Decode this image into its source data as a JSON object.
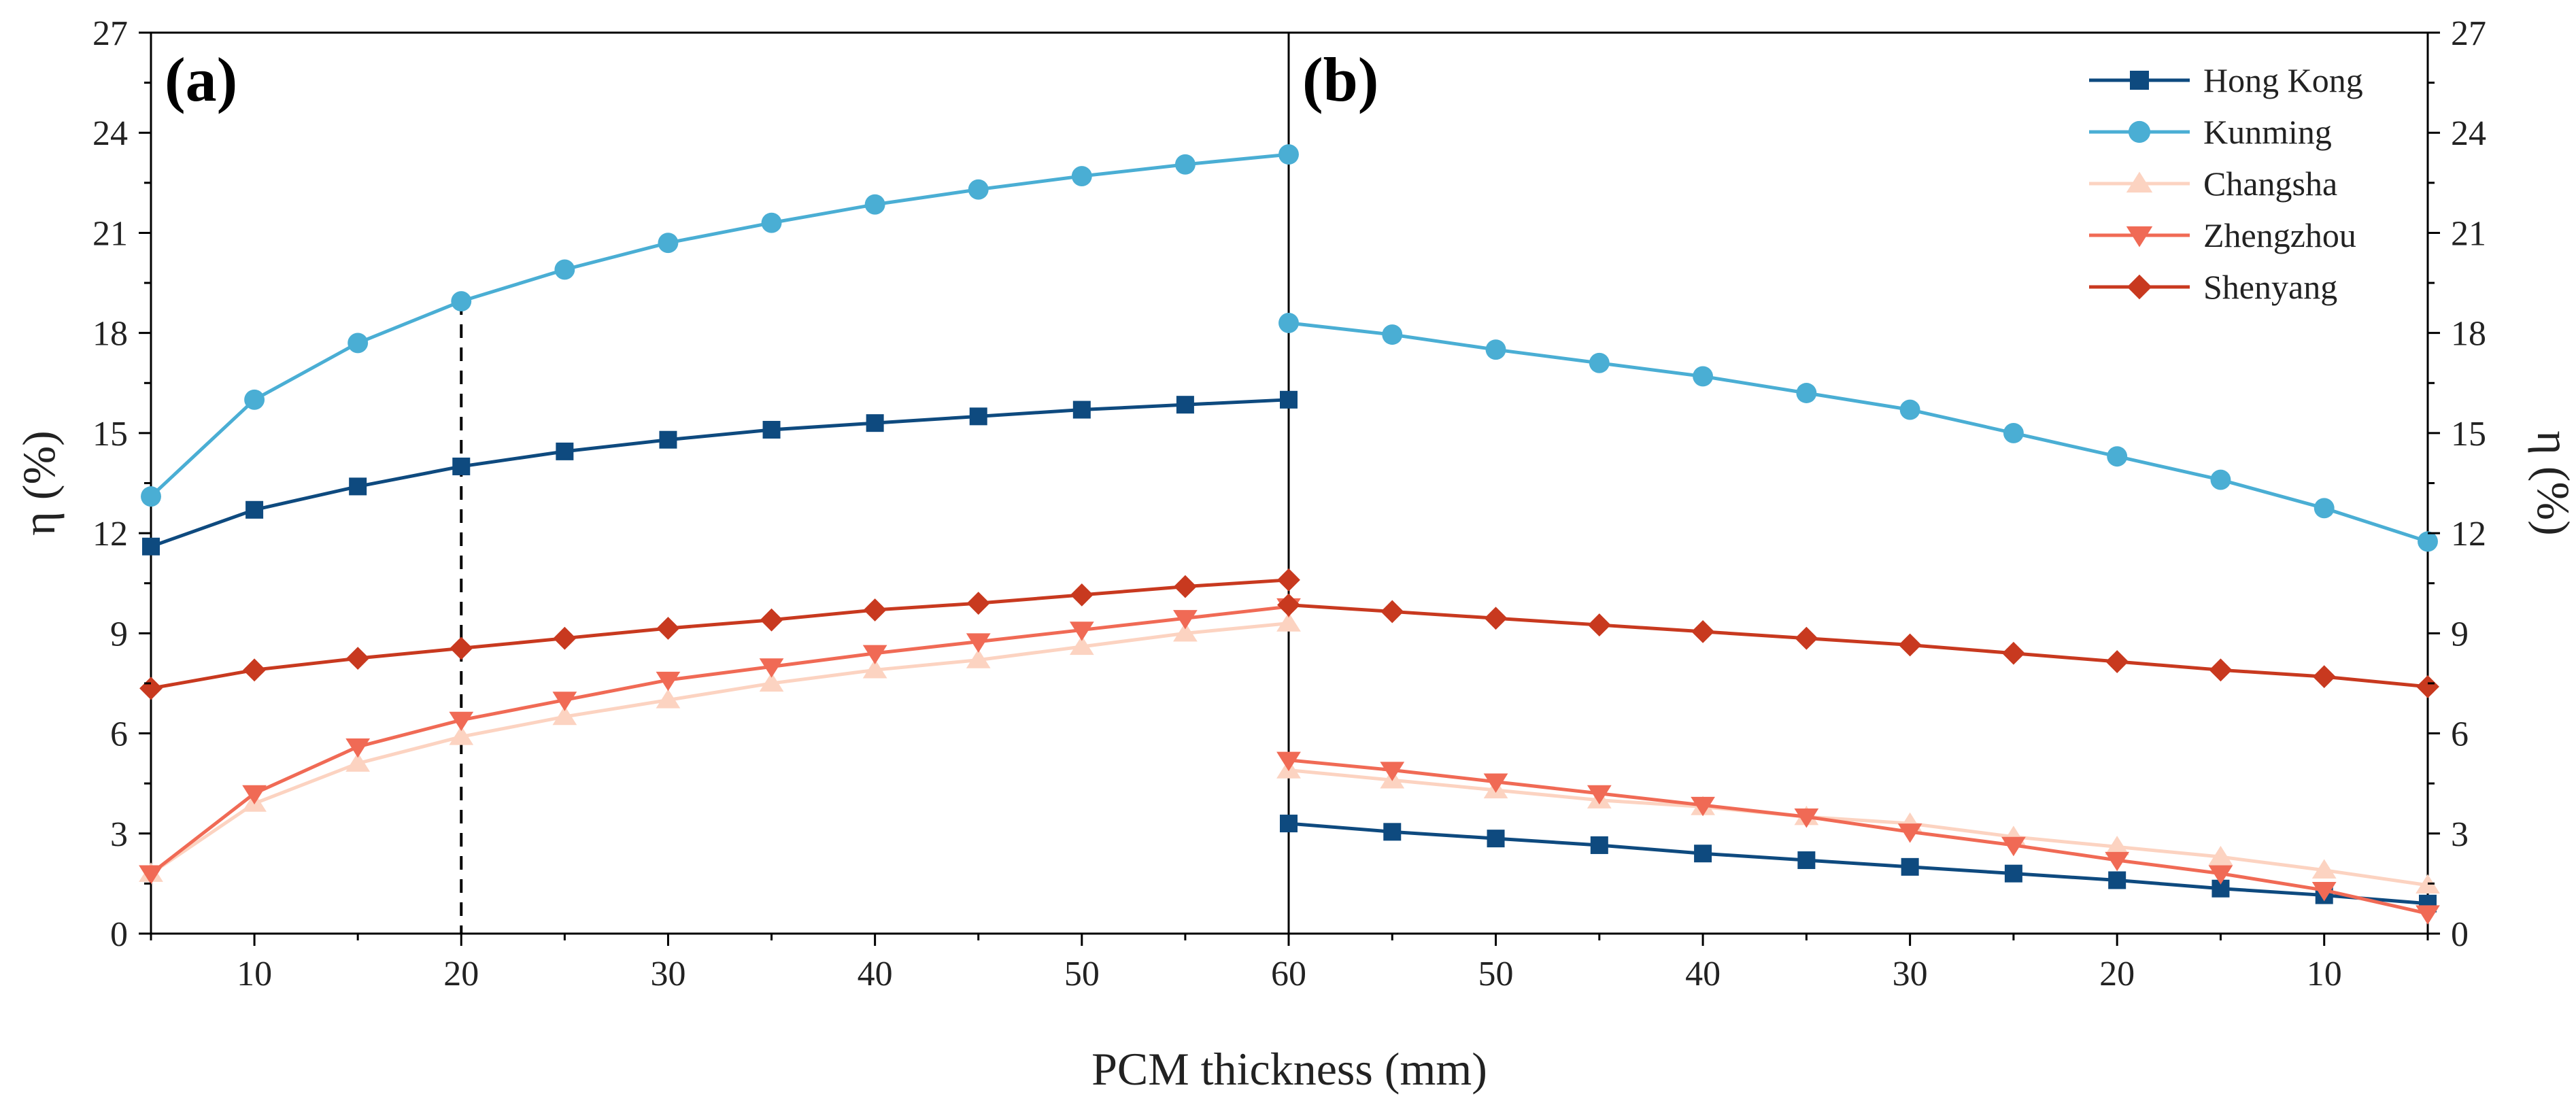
{
  "chart_data": {
    "type": "line",
    "xlabel": "PCM thickness (mm)",
    "ylabel_left": "η (%)",
    "ylabel_right": "η (%)",
    "ylim": [
      0,
      27
    ],
    "y_ticks": [
      0,
      3,
      6,
      9,
      12,
      15,
      18,
      21,
      24,
      27
    ],
    "panels": [
      {
        "label": "(a)",
        "x": [
          5,
          10,
          15,
          20,
          25,
          30,
          35,
          40,
          45,
          50,
          55,
          60
        ],
        "xlim": [
          5,
          60
        ],
        "x_direction": "increasing",
        "x_ticks": [
          10,
          20,
          30,
          40,
          50,
          60
        ],
        "reference_line_x": 20,
        "series": [
          {
            "name": "Hong Kong",
            "values": [
              11.6,
              12.7,
              13.4,
              14.0,
              14.45,
              14.8,
              15.1,
              15.3,
              15.5,
              15.7,
              15.85,
              16.0
            ]
          },
          {
            "name": "Kunming",
            "values": [
              13.1,
              16.0,
              17.7,
              18.95,
              19.9,
              20.7,
              21.3,
              21.85,
              22.3,
              22.7,
              23.05,
              23.35
            ]
          },
          {
            "name": "Changsha",
            "values": [
              1.8,
              3.9,
              5.1,
              5.9,
              6.5,
              7.0,
              7.5,
              7.9,
              8.2,
              8.6,
              9.0,
              9.3
            ]
          },
          {
            "name": "Zhengzhou",
            "values": [
              1.8,
              4.2,
              5.6,
              6.4,
              7.0,
              7.6,
              8.0,
              8.4,
              8.75,
              9.1,
              9.45,
              9.8
            ]
          },
          {
            "name": "Shenyang",
            "values": [
              7.35,
              7.9,
              8.25,
              8.55,
              8.85,
              9.15,
              9.4,
              9.7,
              9.9,
              10.15,
              10.4,
              10.6
            ]
          }
        ]
      },
      {
        "label": "(b)",
        "x": [
          60,
          55,
          50,
          45,
          40,
          35,
          30,
          25,
          20,
          15,
          10,
          5
        ],
        "xlim": [
          60,
          5
        ],
        "x_direction": "decreasing",
        "x_ticks": [
          60,
          50,
          40,
          30,
          20,
          10
        ],
        "series": [
          {
            "name": "Hong Kong",
            "values": [
              3.3,
              3.05,
              2.85,
              2.65,
              2.4,
              2.2,
              2.0,
              1.8,
              1.6,
              1.35,
              1.15,
              0.9
            ]
          },
          {
            "name": "Kunming",
            "values": [
              18.3,
              17.95,
              17.5,
              17.1,
              16.7,
              16.2,
              15.7,
              15.0,
              14.3,
              13.6,
              12.75,
              11.75
            ]
          },
          {
            "name": "Changsha",
            "values": [
              4.9,
              4.6,
              4.3,
              4.0,
              3.8,
              3.5,
              3.3,
              2.9,
              2.6,
              2.3,
              1.9,
              1.45
            ]
          },
          {
            "name": "Zhengzhou",
            "values": [
              5.2,
              4.9,
              4.55,
              4.2,
              3.85,
              3.5,
              3.05,
              2.65,
              2.2,
              1.8,
              1.3,
              0.6
            ]
          },
          {
            "name": "Shenyang",
            "values": [
              9.85,
              9.65,
              9.45,
              9.25,
              9.05,
              8.85,
              8.65,
              8.4,
              8.15,
              7.9,
              7.7,
              7.4
            ]
          }
        ]
      }
    ],
    "legend": {
      "placement": "top-right",
      "entries": [
        {
          "name": "Hong Kong",
          "marker": "square",
          "color": "#0e4a7f"
        },
        {
          "name": "Kunming",
          "marker": "circle",
          "color": "#4aaed4"
        },
        {
          "name": "Changsha",
          "marker": "triangle-up",
          "color": "#fcd3c1"
        },
        {
          "name": "Zhengzhou",
          "marker": "triangle-down",
          "color": "#f06a55"
        },
        {
          "name": "Shenyang",
          "marker": "diamond",
          "color": "#c8391f"
        }
      ]
    }
  }
}
